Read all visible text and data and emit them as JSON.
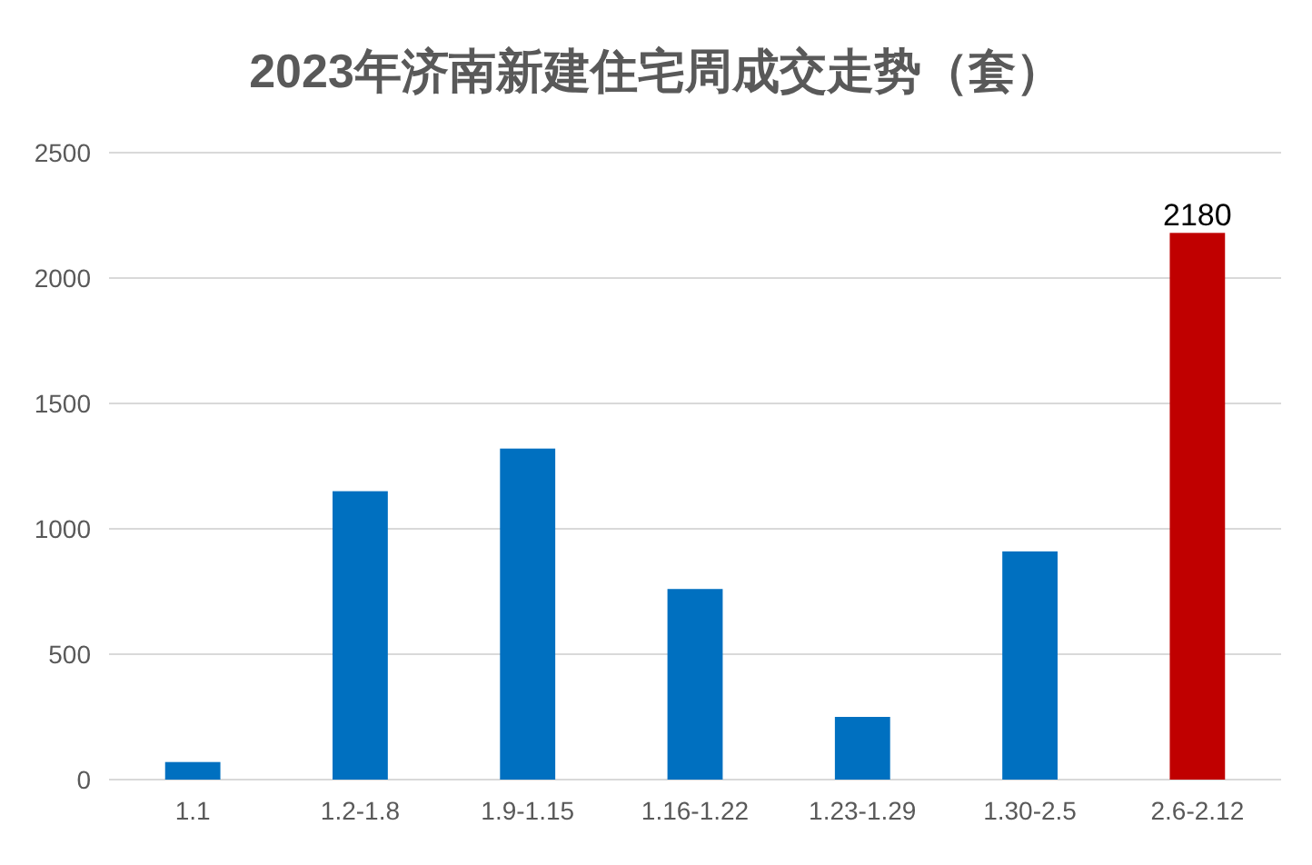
{
  "chart_data": {
    "type": "bar",
    "title": "2023年济南新建住宅周成交走势（套）",
    "categories": [
      "1.1",
      "1.2-1.8",
      "1.9-1.15",
      "1.16-1.22",
      "1.23-1.29",
      "1.30-2.5",
      "2.6-2.12"
    ],
    "values": [
      70,
      1150,
      1320,
      760,
      250,
      910,
      2180
    ],
    "colors": [
      "#0070c0",
      "#0070c0",
      "#0070c0",
      "#0070c0",
      "#0070c0",
      "#0070c0",
      "#c00000"
    ],
    "value_labels": [
      null,
      null,
      null,
      null,
      null,
      null,
      "2180"
    ],
    "ylim": [
      0,
      2500
    ],
    "yticks": [
      0,
      500,
      1000,
      1500,
      2000,
      2500
    ],
    "grid": "y"
  }
}
